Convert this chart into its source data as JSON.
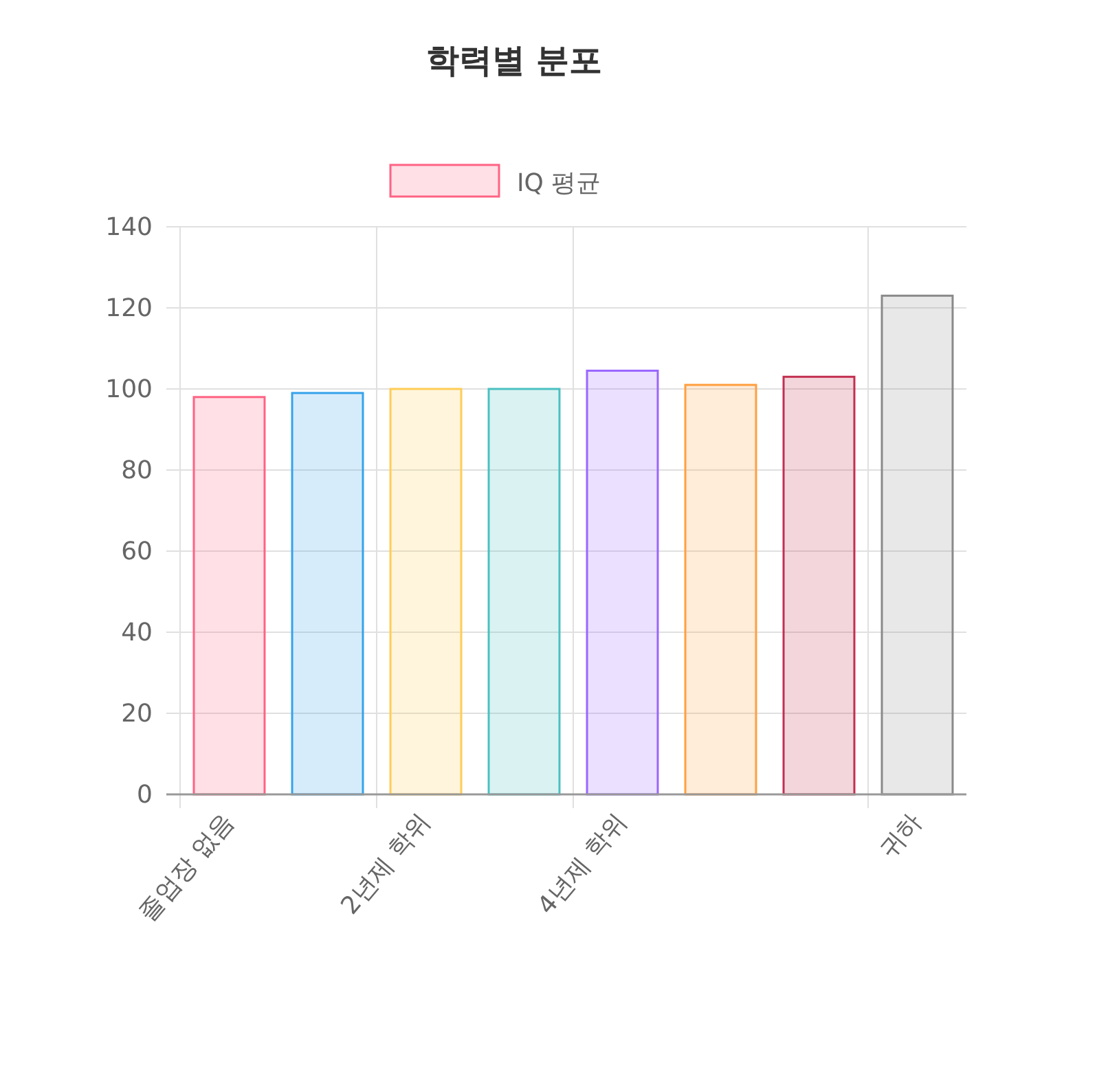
{
  "chart_data": {
    "type": "bar",
    "title": "학력별 분포",
    "categories": [
      "졸업장 없음",
      null,
      "2년제 학위",
      null,
      "4년제 학위",
      null,
      null,
      "귀하"
    ],
    "series": [
      {
        "name": "IQ 평균",
        "color": "#ff6384",
        "colors": [
          "#ff6384",
          "#36a2eb",
          "#ffcd56",
          "#4bc0c0",
          "#9966ff",
          "#ff9f40",
          "#c23050",
          "#8a8a8a"
        ],
        "values": [
          98,
          99,
          100,
          100,
          104.5,
          101,
          103,
          123
        ]
      }
    ],
    "ylim": [
      0,
      140
    ],
    "yticks": [
      0,
      20,
      40,
      60,
      80,
      100,
      120,
      140
    ],
    "grid": true,
    "legend": "top"
  }
}
